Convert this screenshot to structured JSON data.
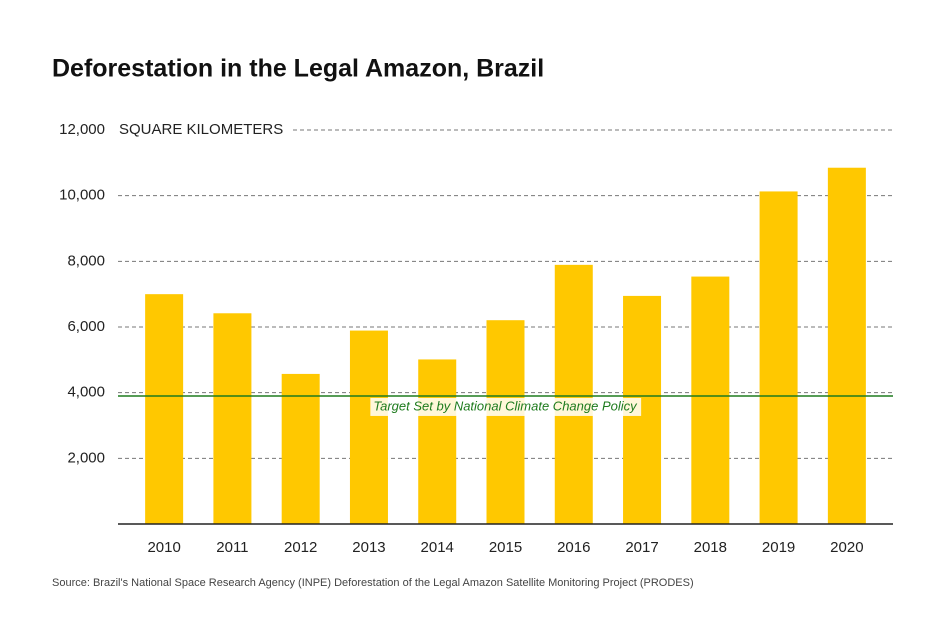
{
  "chart_data": {
    "type": "bar",
    "title": "Deforestation in the Legal Amazon, Brazil",
    "y_label": "SQUARE KILOMETERS",
    "source": "Source: Brazil's National Space Research Agency (INPE) Deforestation of the Legal Amazon Satellite Monitoring Project (PRODES)",
    "categories": [
      "2010",
      "2011",
      "2012",
      "2013",
      "2014",
      "2015",
      "2016",
      "2017",
      "2018",
      "2019",
      "2020"
    ],
    "values": [
      7000,
      6418,
      4571,
      5891,
      5012,
      6207,
      7893,
      6947,
      7536,
      10129,
      10851
    ],
    "color": "#ffc800",
    "ylim": [
      0,
      12000
    ],
    "yticks": [
      {
        "value": 2000,
        "label": "2,000"
      },
      {
        "value": 4000,
        "label": "4,000"
      },
      {
        "value": 6000,
        "label": "6,000"
      },
      {
        "value": 8000,
        "label": "8,000"
      },
      {
        "value": 10000,
        "label": "10,000"
      },
      {
        "value": 12000,
        "label": "12,000"
      }
    ],
    "grid": true,
    "target": {
      "label": "Target Set by National Climate Change Policy",
      "value": 3900,
      "color": "#1e7b1e"
    }
  }
}
